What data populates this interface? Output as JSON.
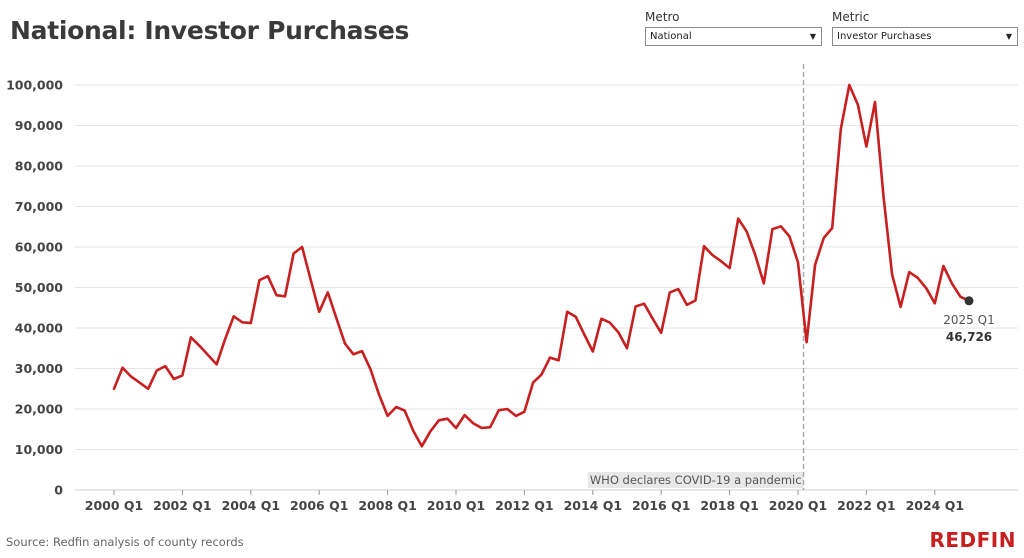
{
  "header": {
    "title": "National: Investor Purchases"
  },
  "filters": {
    "metro": {
      "label": "Metro",
      "value": "National"
    },
    "metric": {
      "label": "Metric",
      "value": "Investor Purchases"
    }
  },
  "footer": {
    "source": "Source: Redfin analysis of county records",
    "logo": "REDFIN"
  },
  "colors": {
    "line": "#c82021",
    "grid": "#e6e6e6",
    "annotation_bg": "#e8e8e8",
    "marker": "#333333"
  },
  "chart_data": {
    "type": "line",
    "title": "National: Investor Purchases",
    "xlabel": "",
    "ylabel": "",
    "ylim": [
      0,
      100000
    ],
    "yticks": [
      0,
      10000,
      20000,
      30000,
      40000,
      50000,
      60000,
      70000,
      80000,
      90000,
      100000
    ],
    "ytick_labels": [
      "0",
      "10,000",
      "20,000",
      "30,000",
      "40,000",
      "50,000",
      "60,000",
      "70,000",
      "80,000",
      "90,000",
      "100,000"
    ],
    "xticks": [
      "2000 Q1",
      "2002 Q1",
      "2004 Q1",
      "2006 Q1",
      "2008 Q1",
      "2010 Q1",
      "2012 Q1",
      "2014 Q1",
      "2016 Q1",
      "2018 Q1",
      "2020 Q1",
      "2022 Q1",
      "2024 Q1"
    ],
    "grid": true,
    "series": [
      {
        "x": [
          "2000 Q1",
          "2000 Q2",
          "2000 Q3",
          "2000 Q4",
          "2001 Q1",
          "2001 Q2",
          "2001 Q3",
          "2001 Q4",
          "2002 Q1",
          "2002 Q2",
          "2002 Q3",
          "2002 Q4",
          "2003 Q1",
          "2003 Q2",
          "2003 Q3",
          "2003 Q4",
          "2004 Q1",
          "2004 Q2",
          "2004 Q3",
          "2004 Q4",
          "2005 Q1",
          "2005 Q2",
          "2005 Q3",
          "2005 Q4",
          "2006 Q1",
          "2006 Q2",
          "2006 Q3",
          "2006 Q4",
          "2007 Q1",
          "2007 Q2",
          "2007 Q3",
          "2007 Q4",
          "2008 Q1",
          "2008 Q2",
          "2008 Q3",
          "2008 Q4",
          "2009 Q1",
          "2009 Q2",
          "2009 Q3",
          "2009 Q4",
          "2010 Q1",
          "2010 Q2",
          "2010 Q3",
          "2010 Q4",
          "2011 Q1",
          "2011 Q2",
          "2011 Q3",
          "2011 Q4",
          "2012 Q1",
          "2012 Q2",
          "2012 Q3",
          "2012 Q4",
          "2013 Q1",
          "2013 Q2",
          "2013 Q3",
          "2013 Q4",
          "2014 Q1",
          "2014 Q2",
          "2014 Q3",
          "2014 Q4",
          "2015 Q1",
          "2015 Q2",
          "2015 Q3",
          "2015 Q4",
          "2016 Q1",
          "2016 Q2",
          "2016 Q3",
          "2016 Q4",
          "2017 Q1",
          "2017 Q2",
          "2017 Q3",
          "2017 Q4",
          "2018 Q1",
          "2018 Q2",
          "2018 Q3",
          "2018 Q4",
          "2019 Q1",
          "2019 Q2",
          "2019 Q3",
          "2019 Q4",
          "2020 Q1",
          "2020 Q2",
          "2020 Q3",
          "2020 Q4",
          "2021 Q1",
          "2021 Q2",
          "2021 Q3",
          "2021 Q4",
          "2022 Q1",
          "2022 Q2",
          "2022 Q3",
          "2022 Q4",
          "2023 Q1",
          "2023 Q2",
          "2023 Q3",
          "2023 Q4",
          "2024 Q1",
          "2024 Q2",
          "2024 Q3",
          "2024 Q4",
          "2025 Q1"
        ],
        "values": [
          25000,
          30200,
          28000,
          26500,
          25000,
          29500,
          30600,
          27400,
          28300,
          37700,
          35600,
          33300,
          31000,
          37300,
          42900,
          41400,
          41200,
          51800,
          52800,
          48100,
          47800,
          58400,
          60000,
          52000,
          44000,
          48800,
          42500,
          36200,
          33500,
          34300,
          29800,
          23500,
          18300,
          20500,
          19600,
          14600,
          10800,
          14500,
          17200,
          17600,
          15300,
          18500,
          16500,
          15300,
          15500,
          19700,
          20000,
          18300,
          19300,
          26500,
          28500,
          32700,
          32000,
          44000,
          42800,
          38400,
          34200,
          42300,
          41300,
          38900,
          35000,
          45300,
          46000,
          42300,
          38800,
          48800,
          49600,
          45700,
          46800,
          60200,
          58000,
          56500,
          54800,
          67000,
          63800,
          58000,
          51000,
          64400,
          65100,
          62600,
          56200,
          36500,
          55600,
          62200,
          64700,
          89100,
          100000,
          95100,
          84800,
          95800,
          72500,
          53200,
          45200,
          53800,
          52400,
          49800,
          46100,
          55300,
          51000,
          47700,
          46726
        ]
      }
    ],
    "annotations": [
      {
        "x": "2020 Q2",
        "label": "WHO declares COVID-19 a pandemic",
        "style": "dashed-vertical"
      }
    ],
    "last_point": {
      "x": "2025 Q1",
      "value": "46,726"
    }
  }
}
